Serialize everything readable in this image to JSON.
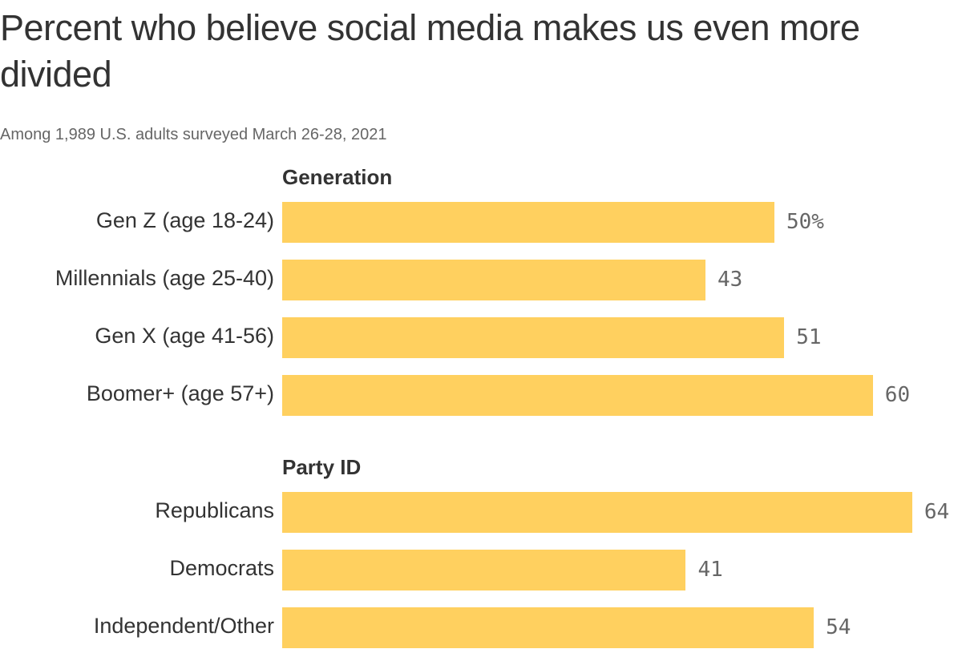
{
  "chart_data": {
    "type": "bar",
    "orientation": "horizontal",
    "title": "Percent who believe social media makes us even more divided",
    "subtitle": "Among 1,989 U.S. adults surveyed March 26-28, 2021",
    "bar_color": "#FFD05F",
    "unit_suffix": "%",
    "groups": [
      {
        "name": "Generation",
        "categories": [
          "Gen Z (age 18-24)",
          "Millennials (age 25-40)",
          "Gen X (age 41-56)",
          "Boomer+ (age 57+)"
        ],
        "values": [
          50,
          43,
          51,
          60
        ],
        "labels": [
          "50%",
          "43",
          "51",
          "60"
        ]
      },
      {
        "name": "Party ID",
        "categories": [
          "Republicans",
          "Democrats",
          "Independent/Other"
        ],
        "values": [
          64,
          41,
          54
        ],
        "labels": [
          "64",
          "41",
          "54"
        ]
      }
    ],
    "xlim": [
      0,
      64
    ]
  }
}
